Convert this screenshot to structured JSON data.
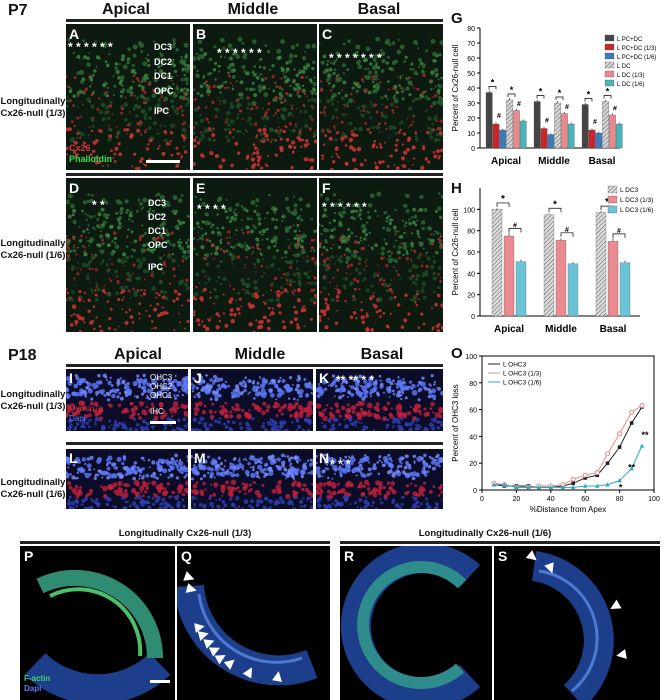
{
  "sections": {
    "p7": "P7",
    "p18": "P18"
  },
  "columns": {
    "apical": "Apical",
    "middle": "Middle",
    "basal": "Basal"
  },
  "rows": {
    "r13": [
      "Longitudinally",
      "Cx26-null (1/3)"
    ],
    "r16": [
      "Longitudinally",
      "Cx26-null (1/6)"
    ]
  },
  "panels": [
    "A",
    "B",
    "C",
    "D",
    "E",
    "F",
    "G",
    "H",
    "I",
    "J",
    "K",
    "L",
    "M",
    "N",
    "O",
    "P",
    "Q",
    "R",
    "S"
  ],
  "cell_labels": {
    "a": [
      "DC3",
      "DC2",
      "DC1",
      "OPC",
      "IPC"
    ],
    "d": [
      "DC3",
      "DC2",
      "DC1",
      "OPC",
      "IPC"
    ]
  },
  "stains_a": {
    "cx26": "Cx26",
    "phalloidin": "Phalloidin"
  },
  "stains_i": {
    "myosin": "Myosin7a",
    "dapi": "Dapi",
    "ohc3": "OHC3",
    "ohc2": "OHC2",
    "ohc1": "OHC1",
    "ihc": "IHC"
  },
  "stains_p": {
    "factin": "F-actin",
    "dapi": "Dapi"
  },
  "whole_mount_titles": {
    "left": "Longitudinally Cx26-null (1/3)",
    "right": "Longitudinally Cx26-null (1/6)"
  },
  "asterisks": {
    "A": "* * * * * *",
    "B": "*       * * * * *",
    "C": "* *    * * * *    *",
    "D": "* *",
    "E": "* *      *       *",
    "F": "* *          * *            * *",
    "K": "** **      *      *",
    "N": "*     *             *"
  },
  "chart_data": [
    {
      "panel": "G",
      "type": "bar",
      "ylabel": "Percent of Cx26-null cell",
      "ylim": [
        0,
        80
      ],
      "yticks": [
        0,
        10,
        20,
        30,
        40,
        50,
        60,
        70,
        80
      ],
      "categories": [
        "Apical",
        "Middle",
        "Basal"
      ],
      "series": [
        {
          "name": "L PC+DC",
          "color": "#444444",
          "pattern": "solid",
          "values": [
            37,
            31,
            29
          ],
          "err": [
            1.5,
            1.2,
            1.2
          ]
        },
        {
          "name": "L PC+DC (1/3)",
          "color": "#c8252d",
          "pattern": "solid",
          "values": [
            16,
            13,
            12
          ],
          "err": [
            1.2,
            1.0,
            1.0
          ]
        },
        {
          "name": "L PC+DC (1/6)",
          "color": "#3d7ab8",
          "pattern": "solid",
          "values": [
            12,
            9,
            10
          ],
          "err": [
            0.8,
            0.8,
            0.8
          ]
        },
        {
          "name": "L DC",
          "color": "#a9a9a9",
          "pattern": "hatch",
          "values": [
            32,
            30,
            31
          ],
          "err": [
            1.4,
            1.2,
            1.2
          ]
        },
        {
          "name": "L DC (1/3)",
          "color": "#e78a8f",
          "pattern": "solid",
          "values": [
            25,
            23,
            22
          ],
          "err": [
            1.2,
            1.0,
            1.0
          ]
        },
        {
          "name": "L DC (1/6)",
          "color": "#49b3b6",
          "pattern": "solid",
          "values": [
            18,
            16,
            16
          ],
          "err": [
            1.0,
            0.8,
            0.8
          ]
        }
      ],
      "annotations": [
        "*",
        "#"
      ]
    },
    {
      "panel": "H",
      "type": "bar",
      "ylabel": "Percent of Cx26-null cell",
      "ylim": [
        0,
        120
      ],
      "yticks": [
        0,
        20,
        40,
        60,
        80,
        100
      ],
      "categories": [
        "Apical",
        "Middle",
        "Basal"
      ],
      "series": [
        {
          "name": "L DC3",
          "color": "#b5b5b5",
          "pattern": "hatch",
          "values": [
            100,
            95,
            97
          ],
          "err": [
            1,
            1,
            1.5
          ]
        },
        {
          "name": "L DC3 (1/3)",
          "color": "#e98b90",
          "pattern": "solid",
          "values": [
            75,
            71,
            70
          ],
          "err": [
            3,
            2,
            3
          ]
        },
        {
          "name": "L DC3 (1/6)",
          "color": "#6cc2d6",
          "pattern": "solid",
          "values": [
            51,
            49,
            50
          ],
          "err": [
            2,
            1.5,
            2
          ]
        }
      ],
      "annotations": [
        "*",
        "#"
      ]
    },
    {
      "panel": "O",
      "type": "line",
      "xlabel": "%Distance from Apex",
      "ylabel": "Percent of OHC3 loss",
      "xlim": [
        0,
        100
      ],
      "ylim": [
        0,
        100
      ],
      "xticks": [
        0,
        20,
        40,
        60,
        80,
        100
      ],
      "yticks": [
        0,
        20,
        40,
        60,
        80,
        100
      ],
      "legend_position": "top-left",
      "x": [
        7,
        13,
        20,
        27,
        33,
        40,
        47,
        53,
        60,
        67,
        73,
        80,
        87,
        93
      ],
      "series": [
        {
          "name": "L OHC3",
          "color": "#222222",
          "marker": "square",
          "values": [
            4,
            3,
            3,
            3,
            2,
            2,
            3,
            5,
            9,
            11,
            20,
            32,
            50,
            62
          ]
        },
        {
          "name": "L OHC3 (1/3)",
          "color": "#e58c8c",
          "marker": "circle",
          "values": [
            5,
            4,
            2,
            2,
            3,
            3,
            4,
            8,
            11,
            13,
            27,
            42,
            58,
            63
          ]
        },
        {
          "name": "L OHC3 (1/6)",
          "color": "#2aa8c4",
          "marker": "triangle",
          "values": [
            4,
            4,
            2,
            2,
            2,
            2,
            2,
            2,
            3,
            3,
            4,
            7,
            16,
            33
          ]
        }
      ],
      "annotations": [
        "*",
        "**",
        "**"
      ]
    }
  ]
}
